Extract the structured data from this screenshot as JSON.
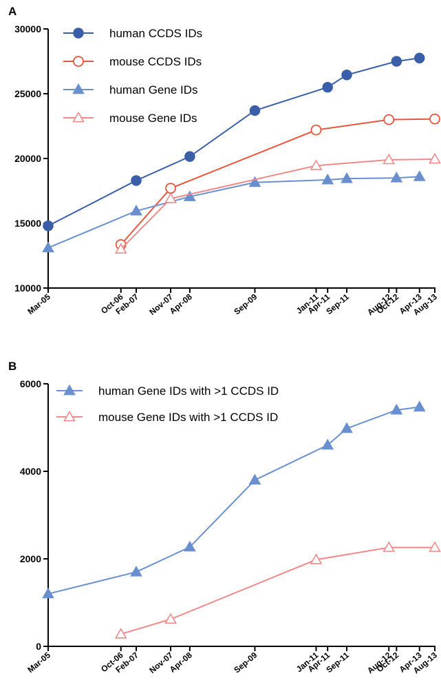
{
  "colors": {
    "human_ccds": "#3a5fa8",
    "mouse_ccds": "#e8553f",
    "human_gene": "#6a8fcf",
    "mouse_gene": "#f08a8a",
    "axis": "#000000"
  },
  "chart_data": [
    {
      "panel_label": "A",
      "type": "line",
      "x": [
        "Mar-05",
        "Oct-06",
        "Feb-07",
        "Nov-07",
        "Apr-08",
        "Sep-09",
        "Jan-11",
        "Apr-11",
        "Sep-11",
        "Aug-12",
        "Oct-12",
        "Apr-13",
        "Aug-13"
      ],
      "ylim": [
        10000,
        30000
      ],
      "yticks": [
        10000,
        15000,
        20000,
        25000,
        30000
      ],
      "legend_position": "top-left",
      "series": [
        {
          "name": "human CCDS IDs",
          "color_key": "human_ccds",
          "marker": "circle-filled",
          "values": [
            14800,
            null,
            18300,
            null,
            20150,
            23700,
            null,
            25500,
            26450,
            null,
            27500,
            27750,
            null
          ]
        },
        {
          "name": "mouse CCDS IDs",
          "color_key": "mouse_ccds",
          "marker": "circle-open",
          "values": [
            null,
            13350,
            null,
            17700,
            null,
            null,
            22200,
            null,
            null,
            23000,
            null,
            null,
            23050
          ]
        },
        {
          "name": "human Gene IDs",
          "color_key": "human_gene",
          "marker": "triangle-filled",
          "values": [
            13100,
            null,
            15950,
            null,
            17050,
            18150,
            null,
            18350,
            18450,
            null,
            18500,
            18600,
            null
          ]
        },
        {
          "name": "mouse Gene IDs",
          "color_key": "mouse_gene",
          "marker": "triangle-open",
          "values": [
            null,
            13000,
            null,
            16900,
            null,
            null,
            19450,
            null,
            null,
            19900,
            null,
            null,
            19950
          ]
        }
      ]
    },
    {
      "panel_label": "B",
      "type": "line",
      "x": [
        "Mar-05",
        "Oct-06",
        "Feb-07",
        "Nov-07",
        "Apr-08",
        "Sep-09",
        "Jan-11",
        "Apr-11",
        "Sep-11",
        "Aug-12",
        "Oct-12",
        "Apr-13",
        "Aug-13"
      ],
      "ylim": [
        0,
        6000
      ],
      "yticks": [
        0,
        2000,
        4000,
        6000
      ],
      "legend_position": "top-left",
      "series": [
        {
          "name": "human Gene IDs with >1 CCDS ID",
          "color_key": "human_gene",
          "marker": "triangle-filled",
          "values": [
            1200,
            null,
            1700,
            null,
            2270,
            3800,
            null,
            4600,
            4980,
            null,
            5400,
            5470,
            null
          ]
        },
        {
          "name": "mouse Gene IDs with >1 CCDS ID",
          "color_key": "mouse_gene",
          "marker": "triangle-open",
          "values": [
            null,
            280,
            null,
            620,
            null,
            null,
            1980,
            null,
            null,
            2260,
            null,
            null,
            2260
          ]
        }
      ]
    }
  ]
}
